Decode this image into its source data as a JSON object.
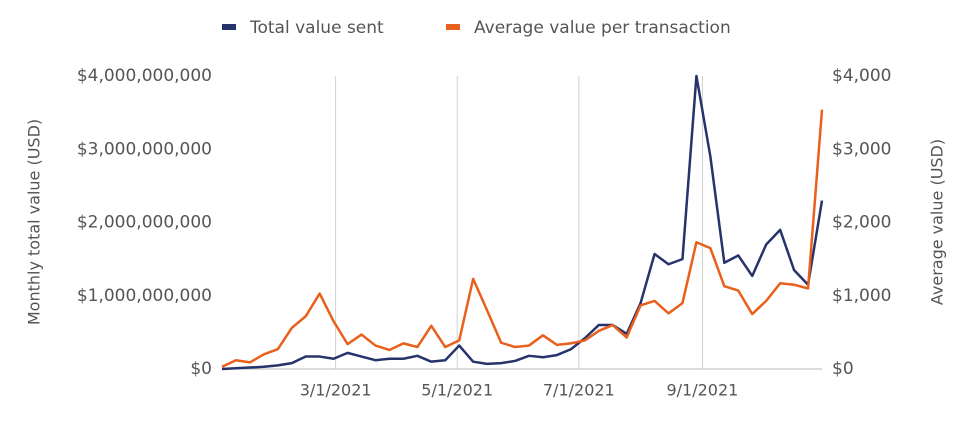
{
  "chart_data": {
    "type": "line",
    "x": [
      "2021-01-03",
      "2021-01-10",
      "2021-01-17",
      "2021-01-24",
      "2021-01-31",
      "2021-02-07",
      "2021-02-14",
      "2021-02-21",
      "2021-02-28",
      "2021-03-07",
      "2021-03-14",
      "2021-03-21",
      "2021-03-28",
      "2021-04-04",
      "2021-04-11",
      "2021-04-18",
      "2021-04-25",
      "2021-05-02",
      "2021-05-09",
      "2021-05-16",
      "2021-05-23",
      "2021-05-30",
      "2021-06-06",
      "2021-06-13",
      "2021-06-20",
      "2021-06-27",
      "2021-07-04",
      "2021-07-11",
      "2021-07-18",
      "2021-07-25",
      "2021-08-01",
      "2021-08-08",
      "2021-08-15",
      "2021-08-22",
      "2021-08-29",
      "2021-09-05",
      "2021-09-12",
      "2021-09-19",
      "2021-09-26",
      "2021-10-03",
      "2021-10-10",
      "2021-10-17",
      "2021-10-24",
      "2021-10-31"
    ],
    "series": [
      {
        "name": "Total value sent",
        "color": "#27336b",
        "axis": "y",
        "values": [
          0,
          10000000,
          20000000,
          30000000,
          50000000,
          80000000,
          170000000,
          170000000,
          140000000,
          220000000,
          170000000,
          120000000,
          140000000,
          140000000,
          180000000,
          100000000,
          120000000,
          320000000,
          100000000,
          70000000,
          80000000,
          110000000,
          180000000,
          160000000,
          190000000,
          270000000,
          420000000,
          600000000,
          600000000,
          480000000,
          900000000,
          1570000000,
          1430000000,
          1500000000,
          4000000000,
          2900000000,
          1450000000,
          1550000000,
          1270000000,
          1700000000,
          1900000000,
          1350000000,
          1150000000,
          2300000000
        ]
      },
      {
        "name": "Average value per transaction",
        "color": "#e8601c",
        "axis": "y2",
        "values": [
          30,
          120,
          90,
          200,
          270,
          560,
          720,
          1030,
          650,
          340,
          470,
          320,
          260,
          350,
          300,
          590,
          300,
          390,
          1230,
          800,
          360,
          300,
          320,
          460,
          330,
          350,
          390,
          520,
          600,
          430,
          870,
          930,
          760,
          900,
          1730,
          1650,
          1130,
          1070,
          750,
          930,
          1170,
          1150,
          1100,
          3540
        ]
      }
    ],
    "xlim": [
      "2021-01-03",
      "2021-10-31"
    ],
    "xticks": [
      {
        "value": "2021-03-01",
        "label": "3/1/2021"
      },
      {
        "value": "2021-05-01",
        "label": "5/1/2021"
      },
      {
        "value": "2021-07-01",
        "label": "7/1/2021"
      },
      {
        "value": "2021-09-01",
        "label": "9/1/2021"
      }
    ],
    "ylabel": "Monthly total value (USD)",
    "ylim": [
      0,
      4000000000
    ],
    "yticks": [
      {
        "value": 0,
        "label": "$0"
      },
      {
        "value": 1000000000,
        "label": "$1,000,000,000"
      },
      {
        "value": 2000000000,
        "label": "$2,000,000,000"
      },
      {
        "value": 3000000000,
        "label": "$3,000,000,000"
      },
      {
        "value": 4000000000,
        "label": "$4,000,000,000"
      }
    ],
    "y2label": "Average value (USD)",
    "y2lim": [
      0,
      4000
    ],
    "y2ticks": [
      {
        "value": 0,
        "label": "$0"
      },
      {
        "value": 1000,
        "label": "$1,000"
      },
      {
        "value": 2000,
        "label": "$2,000"
      },
      {
        "value": 3000,
        "label": "$3,000"
      },
      {
        "value": 4000,
        "label": "$4,000"
      }
    ],
    "grid": "x",
    "legend": "top"
  }
}
